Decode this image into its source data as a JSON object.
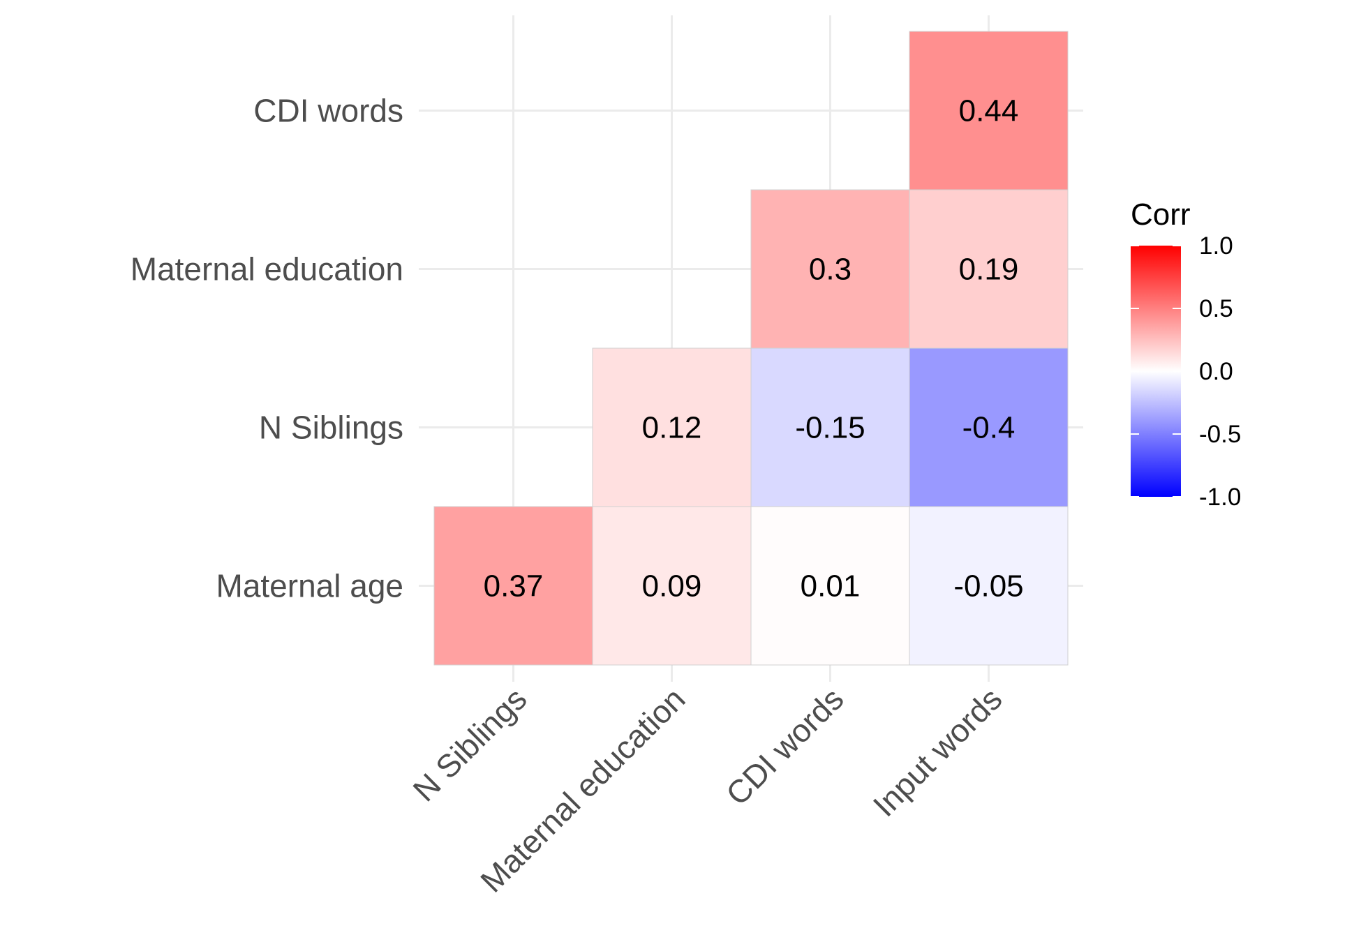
{
  "chart_data": {
    "type": "heatmap",
    "x_categories": [
      "N Siblings",
      "Maternal education",
      "CDI words",
      "Input words"
    ],
    "y_categories": [
      "Maternal age",
      "N Siblings",
      "Maternal education",
      "CDI words"
    ],
    "cells": [
      {
        "x": "N Siblings",
        "y": "Maternal age",
        "value": 0.37,
        "label": "0.37"
      },
      {
        "x": "Maternal education",
        "y": "Maternal age",
        "value": 0.09,
        "label": "0.09"
      },
      {
        "x": "CDI words",
        "y": "Maternal age",
        "value": 0.01,
        "label": "0.01"
      },
      {
        "x": "Input words",
        "y": "Maternal age",
        "value": -0.05,
        "label": "-0.05"
      },
      {
        "x": "Maternal education",
        "y": "N Siblings",
        "value": 0.12,
        "label": "0.12"
      },
      {
        "x": "CDI words",
        "y": "N Siblings",
        "value": -0.15,
        "label": "-0.15"
      },
      {
        "x": "Input words",
        "y": "N Siblings",
        "value": -0.4,
        "label": "-0.4"
      },
      {
        "x": "CDI words",
        "y": "Maternal education",
        "value": 0.3,
        "label": "0.3"
      },
      {
        "x": "Input words",
        "y": "Maternal education",
        "value": 0.19,
        "label": "0.19"
      },
      {
        "x": "Input words",
        "y": "CDI words",
        "value": 0.44,
        "label": "0.44"
      }
    ],
    "legend": {
      "title": "Corr",
      "ticks": [
        "1.0",
        "0.5",
        "0.0",
        "-0.5",
        "-1.0"
      ],
      "range": [
        -1,
        1
      ],
      "placement": "right"
    },
    "colors": {
      "low": "#0000ff",
      "mid": "#ffffff",
      "high": "#ff0000"
    },
    "grid": true
  }
}
